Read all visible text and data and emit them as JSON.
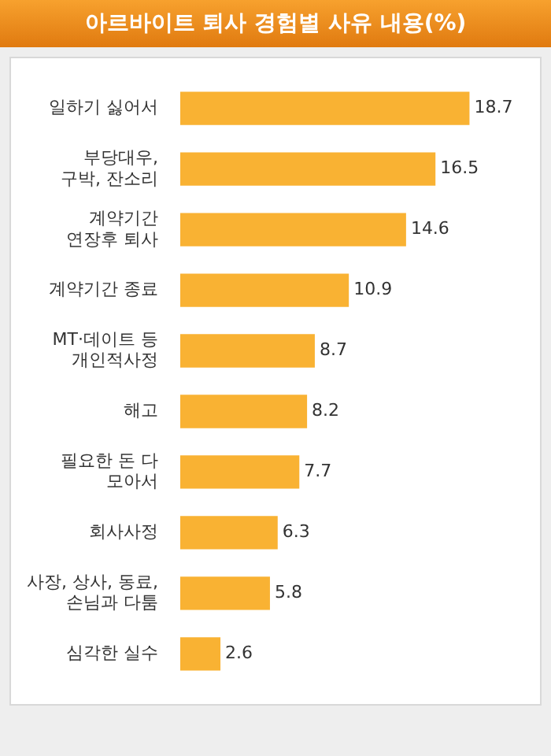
{
  "chart_data": {
    "type": "bar",
    "orientation": "horizontal",
    "title": "아르바이트 퇴사 경험별 사유 내용(%)",
    "categories": [
      "일하기 싫어서",
      "부당대우,\n구박, 잔소리",
      "계약기간\n연장후 퇴사",
      "계약기간 종료",
      "MT·데이트 등\n개인적사정",
      "해고",
      "필요한 돈 다\n모아서",
      "회사사정",
      "사장, 상사, 동료,\n손님과 다툼",
      "심각한 실수"
    ],
    "values": [
      18.7,
      16.5,
      14.6,
      10.9,
      8.7,
      8.2,
      7.7,
      6.3,
      5.8,
      2.6
    ],
    "color": "#f9b233",
    "data_labels": true,
    "tick_labels": "y"
  }
}
